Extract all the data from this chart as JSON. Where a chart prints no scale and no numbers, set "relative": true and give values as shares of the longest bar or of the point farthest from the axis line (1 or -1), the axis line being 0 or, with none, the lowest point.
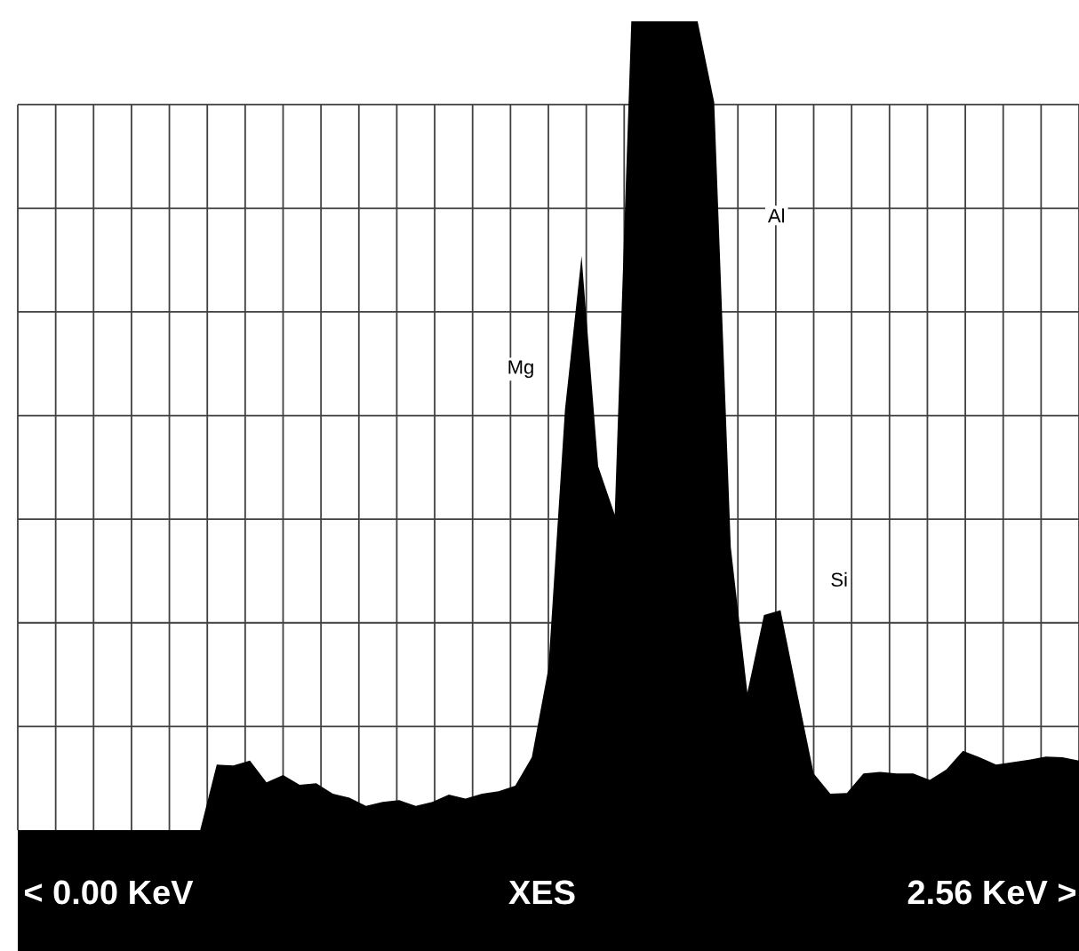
{
  "chart_data": {
    "type": "area",
    "relative": true,
    "color": "#000000",
    "grid": true,
    "categories": [
      null,
      null,
      null,
      null,
      null,
      null,
      null,
      null,
      null,
      null,
      null,
      null,
      null,
      null,
      null,
      null,
      null,
      null,
      null,
      null,
      null,
      null,
      null,
      null,
      null,
      null,
      null,
      null,
      null,
      null,
      null,
      null,
      null,
      null,
      null,
      null,
      null,
      null,
      null,
      null,
      null,
      null,
      null,
      null,
      null,
      null,
      null,
      null,
      null,
      null,
      null,
      null,
      null,
      null,
      null,
      null,
      null,
      null,
      null,
      null,
      null,
      null,
      null,
      null,
      null
    ],
    "values": [
      0,
      0,
      0,
      0,
      0,
      0,
      0,
      0,
      0,
      0,
      0,
      0,
      0.081,
      0.08,
      0.086,
      0.059,
      0.068,
      0.056,
      0.058,
      0.045,
      0.04,
      0.03,
      0.035,
      0.037,
      0.03,
      0.035,
      0.044,
      0.039,
      0.045,
      0.048,
      0.055,
      0.09,
      0.2,
      0.52,
      0.71,
      0.45,
      0.39,
      1,
      1,
      1,
      1,
      1,
      0.9,
      0.35,
      0.17,
      0.266,
      0.272,
      0.17,
      0.07,
      0.045,
      0.046,
      0.07,
      0.072,
      0.07,
      0.07,
      0.062,
      0.075,
      0.098,
      0.09,
      0.081,
      0.084,
      0.087,
      0.091,
      0.09,
      0.086
    ],
    "annotations": [
      "Mg",
      "Al",
      "Si",
      "< 0.00 KeV",
      "XES",
      "2.56 KeV >"
    ]
  }
}
